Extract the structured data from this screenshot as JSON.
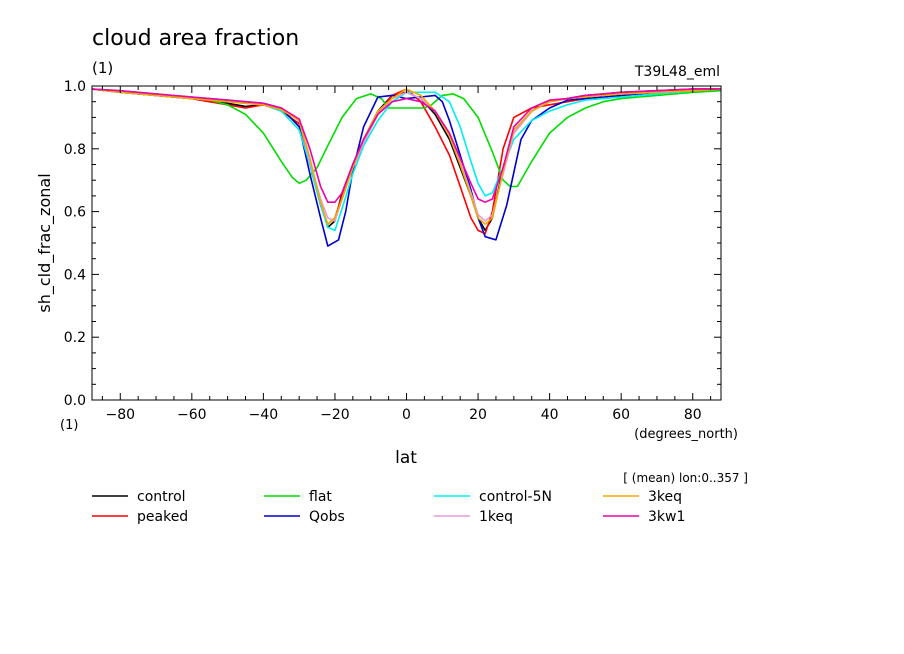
{
  "header": {
    "title": "cloud area fraction",
    "units": "(1)",
    "experiment": "T39L48_eml"
  },
  "footer": {
    "ylabel_units": "(1)",
    "xlabel_units": "(degrees_north)",
    "averaging_note": "[ (mean) lon:0..357 ]"
  },
  "chart_data": {
    "type": "line",
    "xlabel": "lat",
    "ylabel": "sh_cld_frac_zonal",
    "xlim": [
      -87.9,
      87.9
    ],
    "ylim": [
      0,
      1
    ],
    "xticks": [
      -80,
      -60,
      -40,
      -20,
      0,
      20,
      40,
      60,
      80
    ],
    "yticks": [
      0.0,
      0.2,
      0.4,
      0.6,
      0.8,
      1.0
    ],
    "ytick_labels": [
      "0.0",
      "0.2",
      "0.4",
      "0.6",
      "0.8",
      "1.0"
    ],
    "grid": false,
    "legend_position": "bottom",
    "series": [
      {
        "name": "control",
        "color": "#000000",
        "x": [
          -87.9,
          -80,
          -70,
          -60,
          -55,
          -50,
          -45,
          -40,
          -35,
          -30,
          -27,
          -24,
          -22,
          -20,
          -18,
          -15,
          -12,
          -8,
          -4,
          0,
          4,
          8,
          12,
          15,
          18,
          20,
          22,
          24,
          27,
          30,
          35,
          40,
          45,
          50,
          55,
          60,
          70,
          80,
          87.9
        ],
        "y": [
          0.99,
          0.98,
          0.97,
          0.96,
          0.95,
          0.945,
          0.935,
          0.94,
          0.93,
          0.89,
          0.76,
          0.63,
          0.55,
          0.57,
          0.66,
          0.75,
          0.83,
          0.92,
          0.97,
          0.98,
          0.96,
          0.91,
          0.83,
          0.74,
          0.65,
          0.58,
          0.54,
          0.58,
          0.74,
          0.85,
          0.92,
          0.95,
          0.96,
          0.97,
          0.975,
          0.98,
          0.985,
          0.99,
          0.99
        ]
      },
      {
        "name": "peaked",
        "color": "#ff0000",
        "x": [
          -87.9,
          -80,
          -70,
          -60,
          -55,
          -50,
          -45,
          -40,
          -35,
          -30,
          -27,
          -24,
          -22,
          -20,
          -18,
          -15,
          -12,
          -8,
          -4,
          0,
          4,
          8,
          12,
          15,
          18,
          20,
          22,
          24,
          27,
          30,
          35,
          40,
          45,
          50,
          55,
          60,
          70,
          80,
          87.9
        ],
        "y": [
          0.99,
          0.98,
          0.97,
          0.96,
          0.95,
          0.94,
          0.93,
          0.94,
          0.92,
          0.88,
          0.75,
          0.62,
          0.56,
          0.58,
          0.65,
          0.74,
          0.82,
          0.91,
          0.97,
          0.99,
          0.95,
          0.87,
          0.78,
          0.68,
          0.58,
          0.54,
          0.53,
          0.6,
          0.8,
          0.9,
          0.93,
          0.94,
          0.95,
          0.96,
          0.965,
          0.97,
          0.98,
          0.99,
          0.99
        ]
      },
      {
        "name": "flat",
        "color": "#00dd00",
        "x": [
          -87.9,
          -80,
          -70,
          -60,
          -55,
          -50,
          -45,
          -40,
          -35,
          -32,
          -30,
          -28,
          -25,
          -22,
          -18,
          -14,
          -10,
          -7,
          -5,
          0,
          5,
          7,
          10,
          13,
          16,
          20,
          24,
          27,
          29,
          31,
          35,
          40,
          45,
          50,
          55,
          60,
          70,
          80,
          87.9
        ],
        "y": [
          0.99,
          0.985,
          0.975,
          0.965,
          0.955,
          0.94,
          0.91,
          0.85,
          0.76,
          0.71,
          0.69,
          0.7,
          0.74,
          0.81,
          0.9,
          0.96,
          0.975,
          0.96,
          0.93,
          0.93,
          0.93,
          0.94,
          0.97,
          0.975,
          0.96,
          0.9,
          0.79,
          0.7,
          0.68,
          0.68,
          0.76,
          0.85,
          0.9,
          0.93,
          0.95,
          0.96,
          0.97,
          0.98,
          0.985
        ]
      },
      {
        "name": "Qobs",
        "color": "#0000cc",
        "x": [
          -87.9,
          -80,
          -70,
          -60,
          -55,
          -50,
          -45,
          -40,
          -35,
          -30,
          -27,
          -24,
          -22,
          -19,
          -17,
          -15,
          -12,
          -8,
          -4,
          0,
          4,
          8,
          10,
          12,
          15,
          18,
          20,
          22,
          25,
          28,
          32,
          35,
          40,
          45,
          50,
          55,
          60,
          70,
          80,
          87.9
        ],
        "y": [
          0.99,
          0.98,
          0.97,
          0.96,
          0.955,
          0.95,
          0.95,
          0.945,
          0.93,
          0.87,
          0.72,
          0.58,
          0.49,
          0.51,
          0.6,
          0.73,
          0.87,
          0.965,
          0.97,
          0.96,
          0.965,
          0.97,
          0.95,
          0.89,
          0.78,
          0.67,
          0.58,
          0.52,
          0.51,
          0.62,
          0.83,
          0.89,
          0.93,
          0.955,
          0.96,
          0.965,
          0.97,
          0.98,
          0.985,
          0.99
        ]
      },
      {
        "name": "control-5N",
        "color": "#00eeee",
        "x": [
          -87.9,
          -80,
          -70,
          -60,
          -55,
          -50,
          -45,
          -40,
          -35,
          -30,
          -27,
          -24,
          -22,
          -20,
          -18,
          -15,
          -12,
          -8,
          -4,
          0,
          4,
          8,
          12,
          15,
          18,
          20,
          22,
          24,
          27,
          30,
          35,
          40,
          45,
          50,
          55,
          60,
          70,
          80,
          87.9
        ],
        "y": [
          0.99,
          0.98,
          0.97,
          0.965,
          0.96,
          0.955,
          0.95,
          0.94,
          0.92,
          0.86,
          0.75,
          0.62,
          0.55,
          0.54,
          0.61,
          0.72,
          0.81,
          0.89,
          0.95,
          0.98,
          0.98,
          0.98,
          0.95,
          0.87,
          0.76,
          0.69,
          0.65,
          0.66,
          0.74,
          0.83,
          0.89,
          0.92,
          0.94,
          0.955,
          0.96,
          0.965,
          0.975,
          0.985,
          0.99
        ]
      },
      {
        "name": "1keq",
        "color": "#ee99dd",
        "x": [
          -87.9,
          -80,
          -70,
          -60,
          -55,
          -50,
          -45,
          -40,
          -35,
          -30,
          -27,
          -24,
          -22,
          -20,
          -18,
          -15,
          -12,
          -8,
          -4,
          0,
          4,
          8,
          12,
          15,
          18,
          20,
          22,
          24,
          27,
          30,
          35,
          40,
          45,
          50,
          55,
          60,
          70,
          80,
          87.9
        ],
        "y": [
          0.99,
          0.98,
          0.97,
          0.96,
          0.955,
          0.95,
          0.945,
          0.94,
          0.925,
          0.89,
          0.76,
          0.64,
          0.58,
          0.57,
          0.64,
          0.74,
          0.82,
          0.91,
          0.96,
          0.98,
          0.96,
          0.92,
          0.84,
          0.76,
          0.66,
          0.59,
          0.57,
          0.59,
          0.72,
          0.85,
          0.92,
          0.95,
          0.96,
          0.965,
          0.97,
          0.975,
          0.98,
          0.985,
          0.99
        ]
      },
      {
        "name": "3keq",
        "color": "#eeaa00",
        "x": [
          -87.9,
          -80,
          -70,
          -60,
          -55,
          -50,
          -45,
          -40,
          -35,
          -30,
          -27,
          -24,
          -22,
          -20,
          -18,
          -15,
          -12,
          -8,
          -4,
          0,
          4,
          8,
          12,
          15,
          18,
          20,
          22,
          24,
          27,
          30,
          35,
          40,
          45,
          50,
          55,
          60,
          70,
          80,
          87.9
        ],
        "y": [
          0.99,
          0.98,
          0.97,
          0.96,
          0.955,
          0.95,
          0.945,
          0.94,
          0.925,
          0.89,
          0.77,
          0.63,
          0.56,
          0.58,
          0.64,
          0.74,
          0.83,
          0.92,
          0.96,
          0.99,
          0.97,
          0.92,
          0.84,
          0.75,
          0.65,
          0.58,
          0.56,
          0.58,
          0.73,
          0.86,
          0.92,
          0.95,
          0.96,
          0.965,
          0.97,
          0.975,
          0.98,
          0.985,
          0.99
        ]
      },
      {
        "name": "3kw1",
        "color": "#ee00aa",
        "x": [
          -87.9,
          -80,
          -70,
          -60,
          -55,
          -50,
          -45,
          -40,
          -35,
          -30,
          -27,
          -24,
          -22,
          -20,
          -18,
          -15,
          -12,
          -8,
          -4,
          0,
          4,
          8,
          12,
          15,
          18,
          20,
          22,
          24,
          27,
          30,
          35,
          40,
          45,
          50,
          55,
          60,
          70,
          80,
          87.9
        ],
        "y": [
          0.99,
          0.985,
          0.975,
          0.965,
          0.96,
          0.955,
          0.95,
          0.945,
          0.93,
          0.895,
          0.8,
          0.68,
          0.63,
          0.63,
          0.66,
          0.75,
          0.83,
          0.91,
          0.95,
          0.96,
          0.95,
          0.92,
          0.85,
          0.77,
          0.69,
          0.64,
          0.63,
          0.64,
          0.74,
          0.87,
          0.93,
          0.955,
          0.96,
          0.97,
          0.975,
          0.98,
          0.985,
          0.99,
          0.99
        ]
      }
    ]
  }
}
